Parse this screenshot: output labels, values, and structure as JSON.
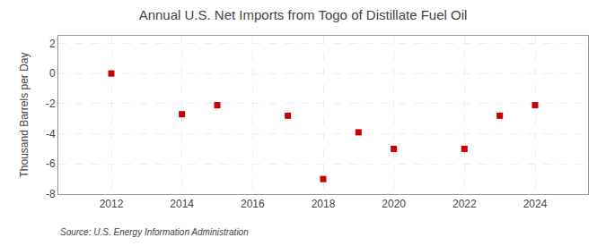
{
  "chart_data": {
    "type": "scatter",
    "title": "Annual U.S. Net Imports from Togo of Distillate Fuel Oil",
    "y_label": "Thousand Barrels per Day",
    "annotations": [
      "Source: U.S. Energy Information Administration"
    ],
    "x": [
      2012,
      2014,
      2015,
      2017,
      2018,
      2019,
      2020,
      2022,
      2023,
      2024
    ],
    "values": [
      0,
      -2.7,
      -2.1,
      -2.8,
      -7.0,
      -3.9,
      -5.0,
      -5.0,
      -2.8,
      -2.1
    ],
    "color": "#cc0000",
    "marker": "square",
    "xlim": [
      2010.5,
      2025.5
    ],
    "ylim": [
      -8,
      2.5
    ],
    "xticks": [
      2012,
      2014,
      2016,
      2018,
      2020,
      2022,
      2024
    ],
    "yticks": [
      -8,
      -6,
      -4,
      -2,
      0,
      2
    ],
    "grid": true
  }
}
